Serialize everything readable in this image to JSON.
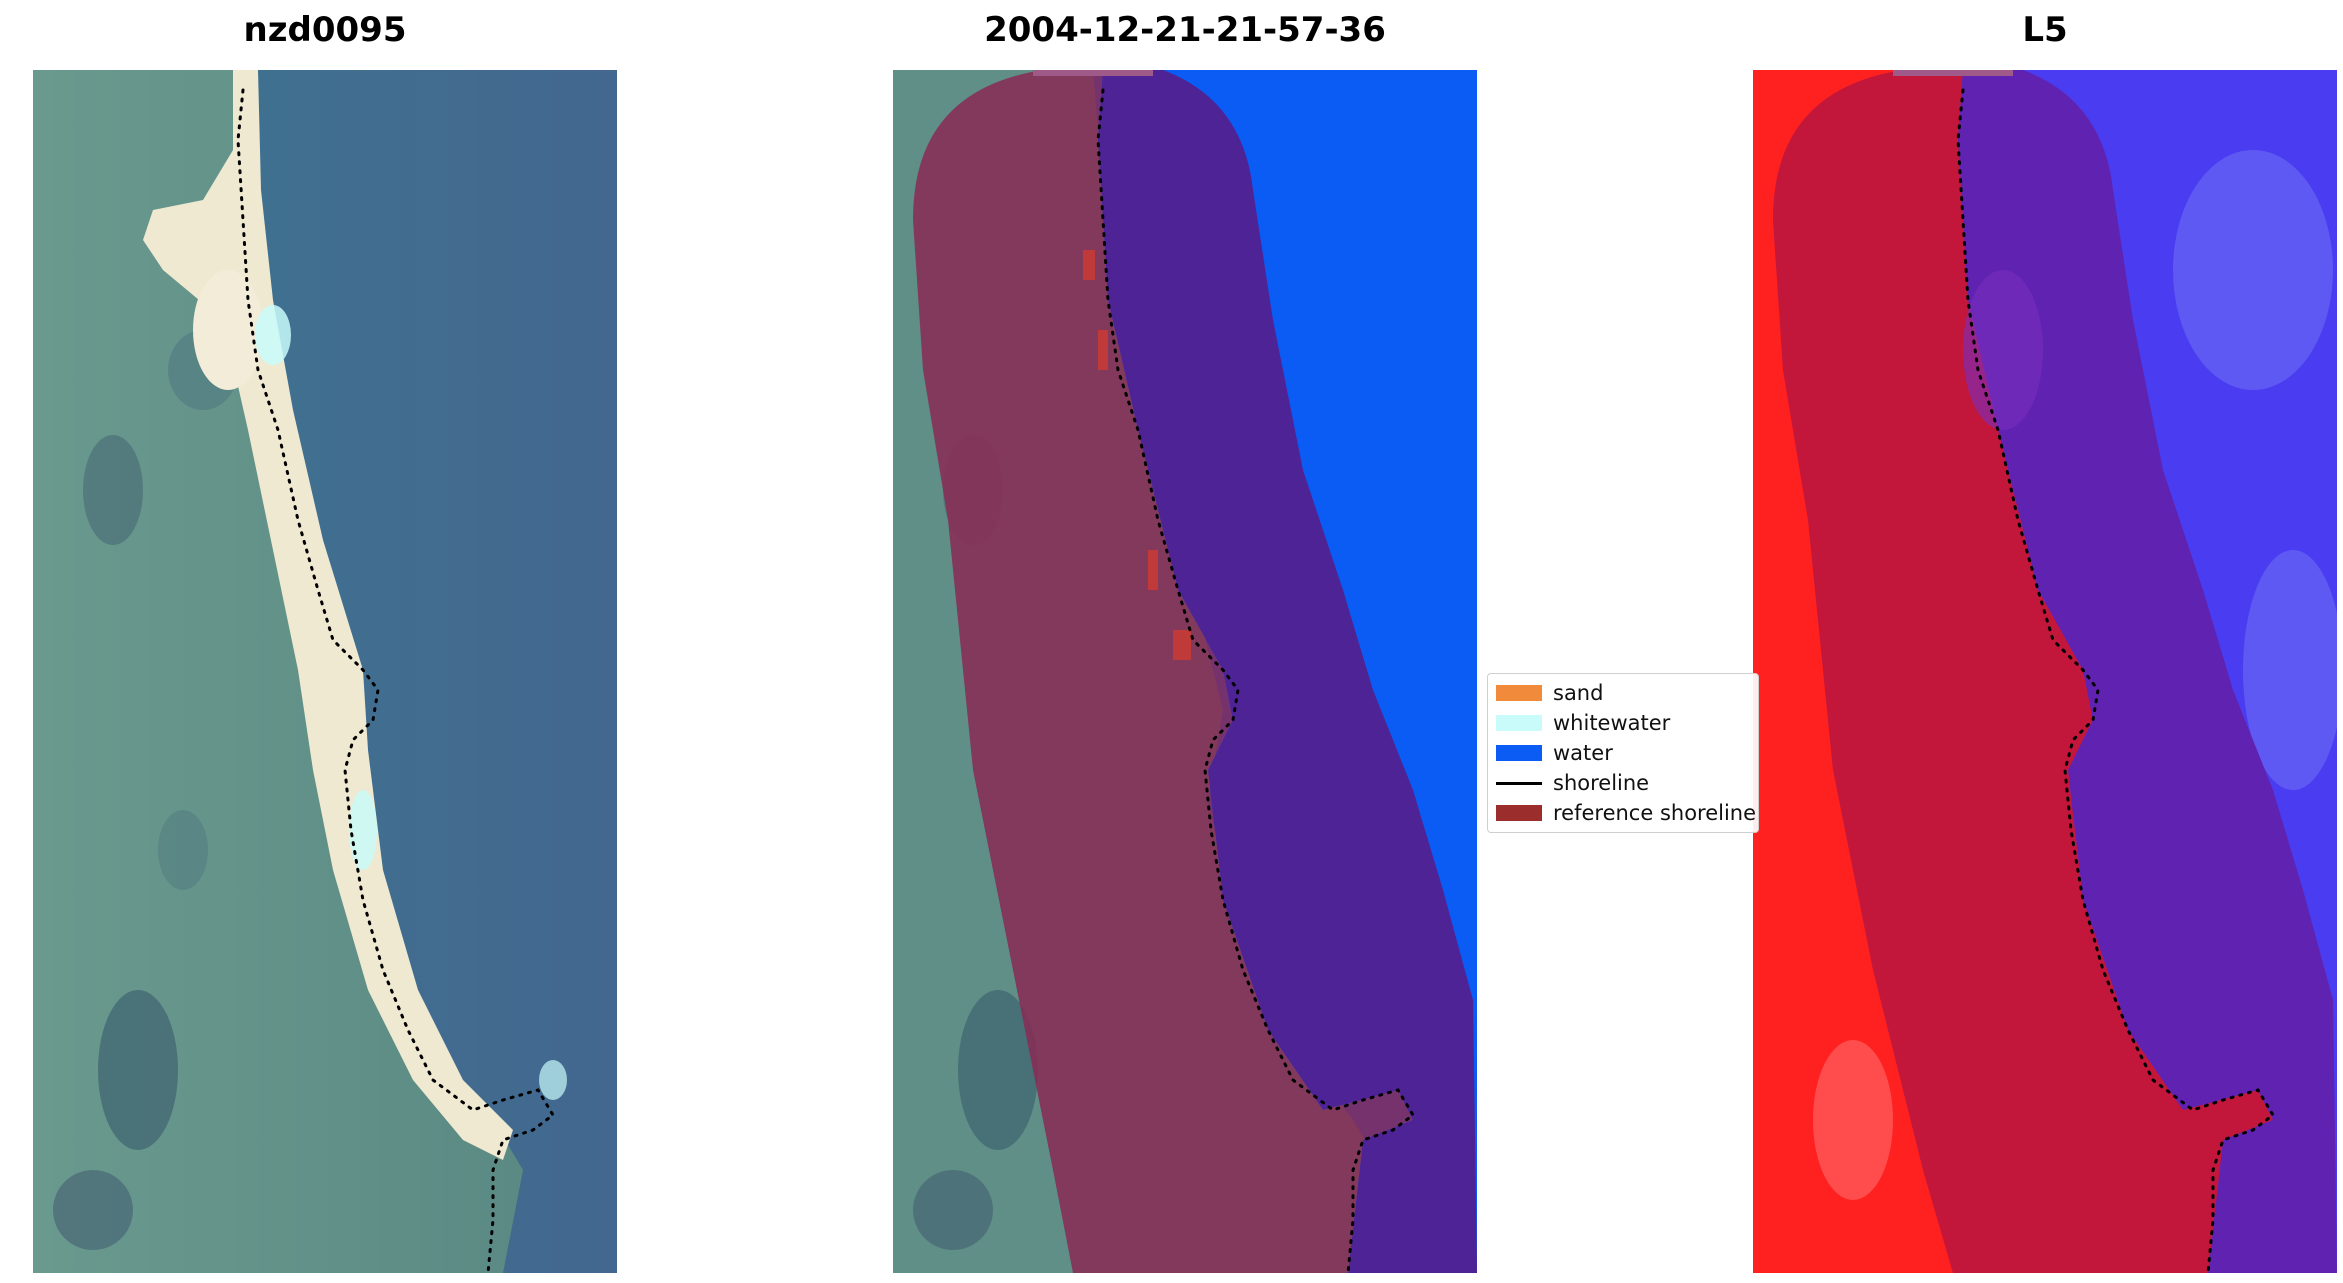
{
  "panels": [
    {
      "id": "rgb",
      "title": "nzd0095"
    },
    {
      "id": "classified",
      "title": "2004-12-21-21-57-36"
    },
    {
      "id": "index",
      "title": "L5"
    }
  ],
  "legend": {
    "items": [
      {
        "label": "sand",
        "color": "#f28a3c",
        "kind": "patch"
      },
      {
        "label": "whitewater",
        "color": "#c8fbfa",
        "kind": "patch"
      },
      {
        "label": "water",
        "color": "#0a5cf5",
        "kind": "patch"
      },
      {
        "label": "shoreline",
        "color": "#000000",
        "kind": "line"
      },
      {
        "label": "reference shoreline",
        "color": "#9b2d2d",
        "kind": "patch"
      }
    ]
  },
  "colors": {
    "land": "#5f8f86",
    "ocean": "#3f6e93",
    "sand": "#efe9d2",
    "water_class": "#0a5cf5",
    "buffer_overlay": "#8a2a55",
    "buffer_sea": "#4e2395",
    "index_land": "#ff2020",
    "index_sea": "#4a3cf0",
    "index_buffer_land": "#c2163a",
    "index_buffer_sea": "#6022b0"
  }
}
